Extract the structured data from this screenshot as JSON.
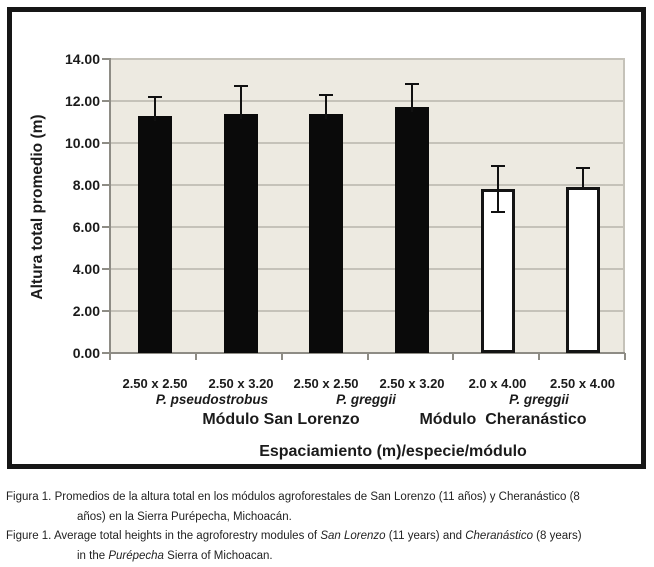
{
  "chart_data": {
    "type": "bar",
    "title": "",
    "ylabel": "Altura total promedio (m)",
    "xlabel": "Espaciamiento (m)/especie/módulo",
    "ylim": [
      0,
      14
    ],
    "ytick_step": 2,
    "grid": "horizontal-on",
    "legend": "none",
    "yticks": [
      {
        "value": 0,
        "label": "0.00"
      },
      {
        "value": 2,
        "label": "2.00"
      },
      {
        "value": 4,
        "label": "4.00"
      },
      {
        "value": 6,
        "label": "6.00"
      },
      {
        "value": 8,
        "label": "8.00"
      },
      {
        "value": 10,
        "label": "10.00"
      },
      {
        "value": 12,
        "label": "12.00"
      },
      {
        "value": 14,
        "label": "14.00"
      }
    ],
    "categories": [
      "2.50 x 2.50",
      "2.50 x 3.20",
      "2.50 x 2.50",
      "2.50 x 3.20",
      "2.0 x 4.00",
      "2.50 x 4.00"
    ],
    "values": [
      11.3,
      11.4,
      11.4,
      11.7,
      7.8,
      7.9
    ],
    "error_up": [
      0.9,
      1.3,
      0.9,
      1.1,
      1.1,
      0.9
    ],
    "error_down": [
      0,
      0,
      0,
      0,
      1.1,
      0
    ],
    "bar_style": [
      "solid-black",
      "solid-black",
      "solid-black",
      "solid-black",
      "white-outlined",
      "white-outlined"
    ],
    "species_groups": [
      {
        "label": "P. pseudostrobus",
        "categories": [
          0,
          1
        ]
      },
      {
        "label": "P. greggii",
        "categories": [
          2,
          3
        ]
      },
      {
        "label": "P. greggii",
        "categories": [
          4,
          5
        ]
      }
    ],
    "module_groups": [
      {
        "label": "Módulo San Lorenzo",
        "categories": [
          0,
          3
        ]
      },
      {
        "label": "Módulo  Cheranástico",
        "categories": [
          4,
          5
        ]
      }
    ],
    "colors": {
      "plot_bg": "#EDEAE1",
      "gridline": "#C5C2B9",
      "axis": "#8E8C85",
      "bar_fill": "#0A0A0A",
      "frame": "#161616"
    }
  },
  "caption": {
    "lines": [
      {
        "indent": false,
        "segments": [
          {
            "text": "Figura 1. Promedios de la altura total en los módulos agroforestales de San Lorenzo (11 años) y Cheranástico (8"
          }
        ]
      },
      {
        "indent": true,
        "segments": [
          {
            "text": "años) en la Sierra Purépecha, Michoacán."
          }
        ]
      },
      {
        "indent": false,
        "segments": [
          {
            "text": "Figure 1. Average total heights in the agroforestry modules of "
          },
          {
            "text": "San Lorenzo",
            "italic": true
          },
          {
            "text": " (11 years) and "
          },
          {
            "text": "Cheranástico",
            "italic": true
          },
          {
            "text": " (8 years)"
          }
        ]
      },
      {
        "indent": true,
        "segments": [
          {
            "text": "in the "
          },
          {
            "text": "Purépecha",
            "italic": true
          },
          {
            "text": " Sierra of Michoacan."
          }
        ]
      }
    ]
  }
}
